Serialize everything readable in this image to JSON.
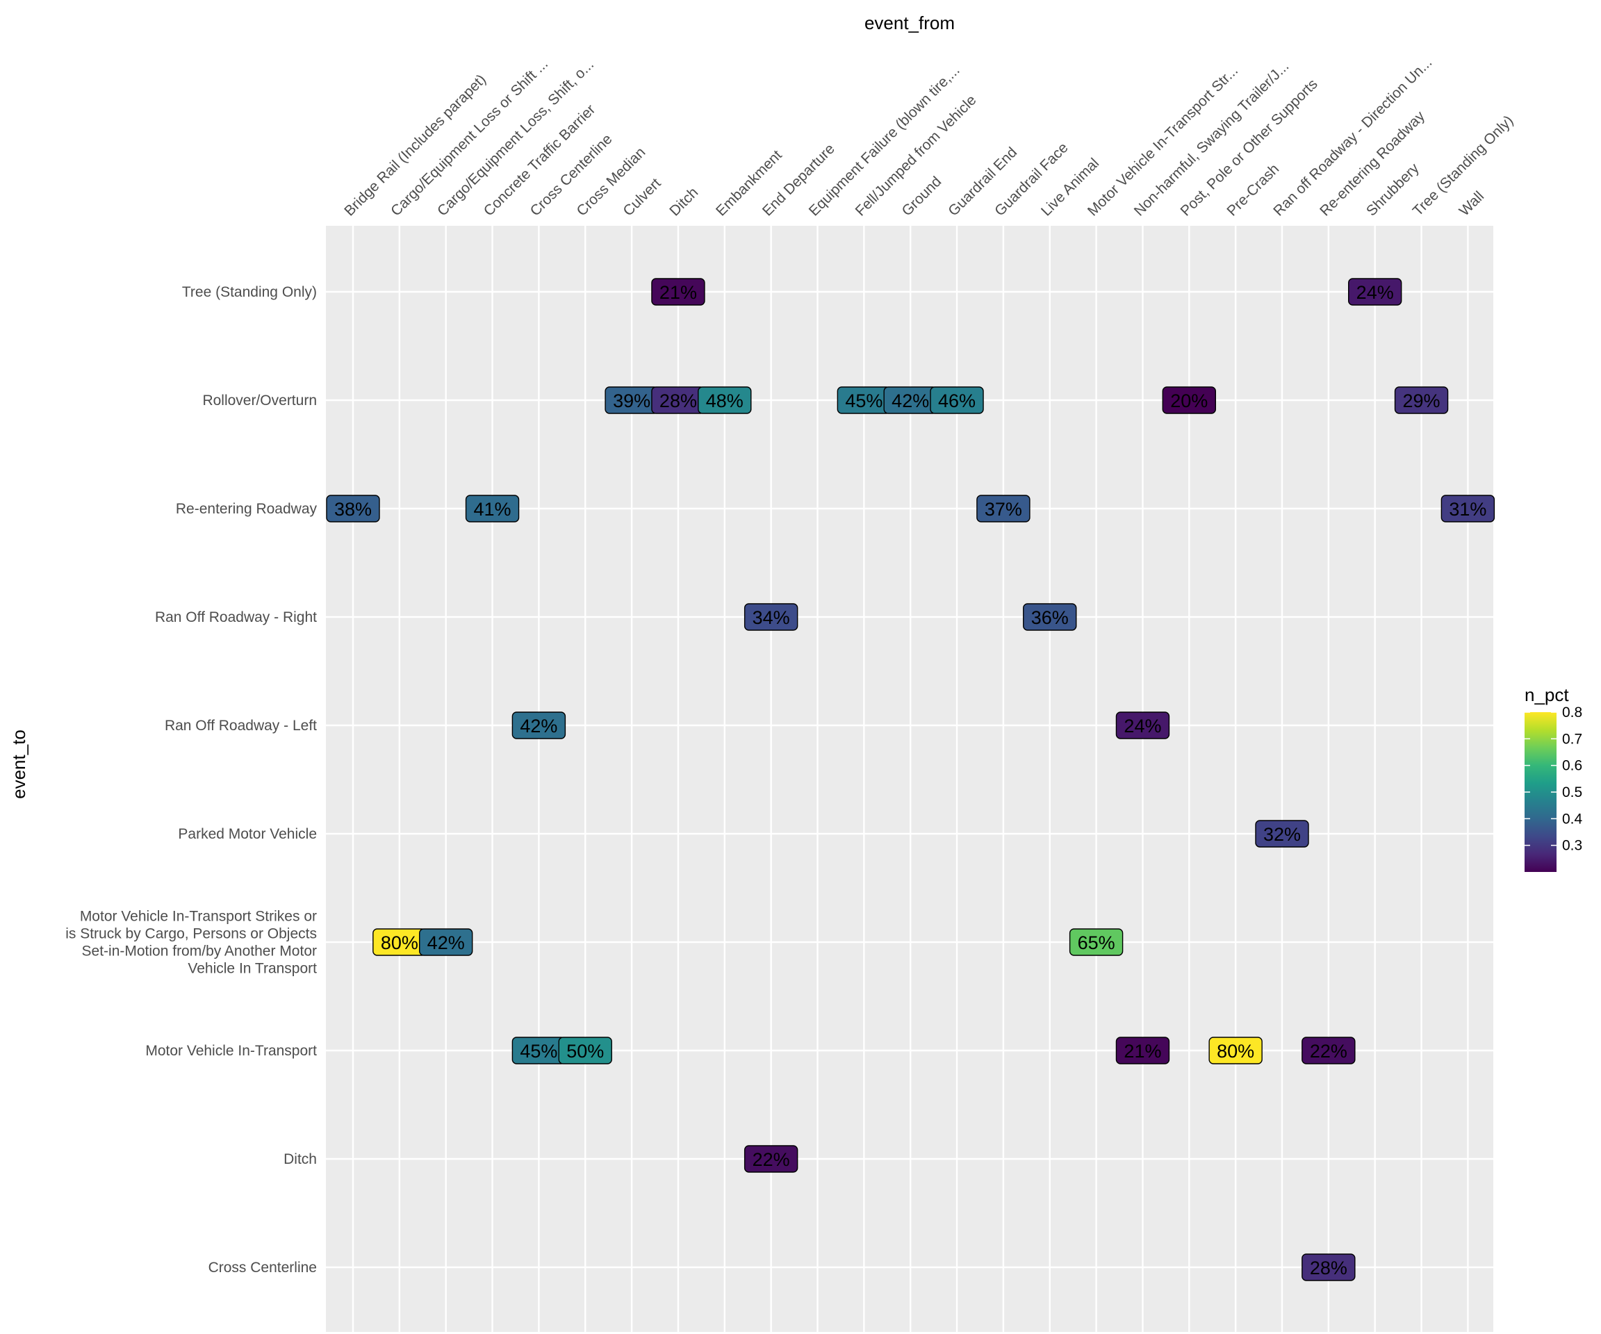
{
  "chart_data": {
    "type": "heatmap",
    "title": "",
    "xlabel": "event_from",
    "ylabel": "event_to",
    "x_position": "top",
    "x_categories": [
      "Bridge Rail (Includes parapet)",
      "Cargo/Equipment Loss or Shift ...",
      "Cargo/Equipment Loss, Shift, o...",
      "Concrete Traffic Barrier",
      "Cross Centerline",
      "Cross Median",
      "Culvert",
      "Ditch",
      "Embankment",
      "End Departure",
      "Equipment Failure (blown tire,...",
      "Fell/Jumped from Vehicle",
      "Ground",
      "Guardrail End",
      "Guardrail Face",
      "Live Animal",
      "Motor Vehicle In-Transport Str...",
      "Non-harmful, Swaying Trailer/J...",
      "Post, Pole or Other Supports",
      "Pre-Crash",
      "Ran off Roadway - Direction Un...",
      "Re-entering Roadway",
      "Shrubbery",
      "Tree (Standing Only)",
      "Wall"
    ],
    "y_categories": [
      "Cross Centerline",
      "Ditch",
      "Motor Vehicle In-Transport",
      "Motor Vehicle In-Transport Strikes or\nis Struck by Cargo, Persons or Objects\nSet-in-Motion from/by Another Motor\nVehicle In Transport",
      "Parked Motor Vehicle",
      "Ran Off Roadway - Left",
      "Ran Off Roadway - Right",
      "Re-entering Roadway",
      "Rollover/Overturn",
      "Tree (Standing Only)"
    ],
    "cells": [
      {
        "x": "Ditch",
        "y": "Tree (Standing Only)",
        "value": 0.21,
        "label": "21%"
      },
      {
        "x": "Shrubbery",
        "y": "Tree (Standing Only)",
        "value": 0.24,
        "label": "24%"
      },
      {
        "x": "Culvert",
        "y": "Rollover/Overturn",
        "value": 0.39,
        "label": "39%"
      },
      {
        "x": "Ditch",
        "y": "Rollover/Overturn",
        "value": 0.28,
        "label": "28%"
      },
      {
        "x": "Embankment",
        "y": "Rollover/Overturn",
        "value": 0.48,
        "label": "48%"
      },
      {
        "x": "Fell/Jumped from Vehicle",
        "y": "Rollover/Overturn",
        "value": 0.45,
        "label": "45%"
      },
      {
        "x": "Ground",
        "y": "Rollover/Overturn",
        "value": 0.42,
        "label": "42%"
      },
      {
        "x": "Guardrail End",
        "y": "Rollover/Overturn",
        "value": 0.46,
        "label": "46%"
      },
      {
        "x": "Post, Pole or Other Supports",
        "y": "Rollover/Overturn",
        "value": 0.2,
        "label": "20%"
      },
      {
        "x": "Tree (Standing Only)",
        "y": "Rollover/Overturn",
        "value": 0.29,
        "label": "29%"
      },
      {
        "x": "Bridge Rail (Includes parapet)",
        "y": "Re-entering Roadway",
        "value": 0.38,
        "label": "38%"
      },
      {
        "x": "Concrete Traffic Barrier",
        "y": "Re-entering Roadway",
        "value": 0.41,
        "label": "41%"
      },
      {
        "x": "Guardrail Face",
        "y": "Re-entering Roadway",
        "value": 0.37,
        "label": "37%"
      },
      {
        "x": "Wall",
        "y": "Re-entering Roadway",
        "value": 0.31,
        "label": "31%"
      },
      {
        "x": "End Departure",
        "y": "Ran Off Roadway - Right",
        "value": 0.34,
        "label": "34%"
      },
      {
        "x": "Live Animal",
        "y": "Ran Off Roadway - Right",
        "value": 0.36,
        "label": "36%"
      },
      {
        "x": "Cross Centerline",
        "y": "Ran Off Roadway - Left",
        "value": 0.42,
        "label": "42%"
      },
      {
        "x": "Non-harmful, Swaying Trailer/J...",
        "y": "Ran Off Roadway - Left",
        "value": 0.24,
        "label": "24%"
      },
      {
        "x": "Ran off Roadway - Direction Un...",
        "y": "Parked Motor Vehicle",
        "value": 0.32,
        "label": "32%"
      },
      {
        "x": "Cargo/Equipment Loss or Shift ...",
        "y": "Motor Vehicle In-Transport Strikes or\nis Struck by Cargo, Persons or Objects\nSet-in-Motion from/by Another Motor\nVehicle In Transport",
        "value": 0.8,
        "label": "80%"
      },
      {
        "x": "Cargo/Equipment Loss, Shift, o...",
        "y": "Motor Vehicle In-Transport Strikes or\nis Struck by Cargo, Persons or Objects\nSet-in-Motion from/by Another Motor\nVehicle In Transport",
        "value": 0.42,
        "label": "42%"
      },
      {
        "x": "Motor Vehicle In-Transport Str...",
        "y": "Motor Vehicle In-Transport Strikes or\nis Struck by Cargo, Persons or Objects\nSet-in-Motion from/by Another Motor\nVehicle In Transport",
        "value": 0.65,
        "label": "65%"
      },
      {
        "x": "Cross Centerline",
        "y": "Motor Vehicle In-Transport",
        "value": 0.45,
        "label": "45%"
      },
      {
        "x": "Cross Median",
        "y": "Motor Vehicle In-Transport",
        "value": 0.5,
        "label": "50%"
      },
      {
        "x": "Non-harmful, Swaying Trailer/J...",
        "y": "Motor Vehicle In-Transport",
        "value": 0.21,
        "label": "21%"
      },
      {
        "x": "Pre-Crash",
        "y": "Motor Vehicle In-Transport",
        "value": 0.8,
        "label": "80%"
      },
      {
        "x": "Re-entering Roadway",
        "y": "Motor Vehicle In-Transport",
        "value": 0.22,
        "label": "22%"
      },
      {
        "x": "End Departure",
        "y": "Ditch",
        "value": 0.22,
        "label": "22%"
      },
      {
        "x": "Re-entering Roadway",
        "y": "Cross Centerline",
        "value": 0.28,
        "label": "28%"
      }
    ],
    "legend": {
      "title": "n_pct",
      "position": "right",
      "min": 0.2,
      "max": 0.8,
      "breaks": [
        0.3,
        0.4,
        0.5,
        0.6,
        0.7,
        0.8
      ],
      "break_labels": [
        "0.3",
        "0.4",
        "0.5",
        "0.6",
        "0.7",
        "0.8"
      ],
      "palette": "viridis"
    },
    "grid": true
  },
  "colors": {
    "panel_background": "#ebebeb",
    "grid_line": "#ffffff",
    "tick_text": "#4d4d4d",
    "label_border": "#000000"
  }
}
